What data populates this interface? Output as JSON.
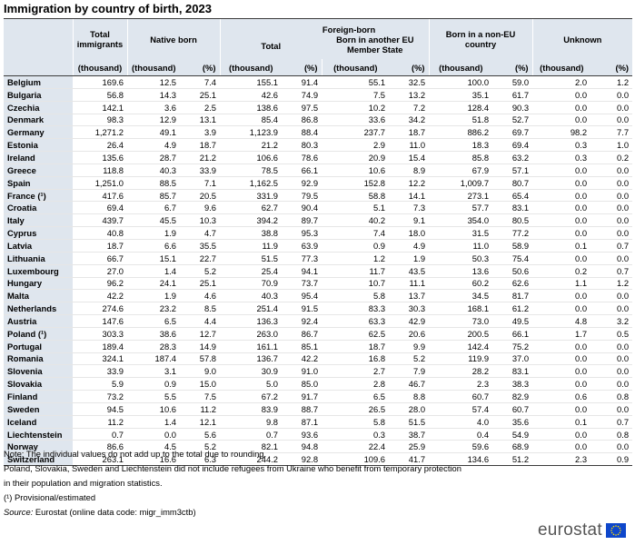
{
  "title": "Immigration by country of birth, 2023",
  "headers": {
    "total_immigrants": "Total immigrants",
    "native_born": "Native born",
    "foreign_born": "Foreign-born",
    "total": "Total",
    "other_eu": "Born in another EU Member State",
    "non_eu": "Born in a non-EU country",
    "unknown": "Unknown",
    "thousand": "(thousand)",
    "percent": "(%)"
  },
  "rows": [
    [
      "Belgium",
      "169.6",
      "12.5",
      "7.4",
      "155.1",
      "91.4",
      "55.1",
      "32.5",
      "100.0",
      "59.0",
      "2.0",
      "1.2"
    ],
    [
      "Bulgaria",
      "56.8",
      "14.3",
      "25.1",
      "42.6",
      "74.9",
      "7.5",
      "13.2",
      "35.1",
      "61.7",
      "0.0",
      "0.0"
    ],
    [
      "Czechia",
      "142.1",
      "3.6",
      "2.5",
      "138.6",
      "97.5",
      "10.2",
      "7.2",
      "128.4",
      "90.3",
      "0.0",
      "0.0"
    ],
    [
      "Denmark",
      "98.3",
      "12.9",
      "13.1",
      "85.4",
      "86.8",
      "33.6",
      "34.2",
      "51.8",
      "52.7",
      "0.0",
      "0.0"
    ],
    [
      "Germany",
      "1,271.2",
      "49.1",
      "3.9",
      "1,123.9",
      "88.4",
      "237.7",
      "18.7",
      "886.2",
      "69.7",
      "98.2",
      "7.7"
    ],
    [
      "Estonia",
      "26.4",
      "4.9",
      "18.7",
      "21.2",
      "80.3",
      "2.9",
      "11.0",
      "18.3",
      "69.4",
      "0.3",
      "1.0"
    ],
    [
      "Ireland",
      "135.6",
      "28.7",
      "21.2",
      "106.6",
      "78.6",
      "20.9",
      "15.4",
      "85.8",
      "63.2",
      "0.3",
      "0.2"
    ],
    [
      "Greece",
      "118.8",
      "40.3",
      "33.9",
      "78.5",
      "66.1",
      "10.6",
      "8.9",
      "67.9",
      "57.1",
      "0.0",
      "0.0"
    ],
    [
      "Spain",
      "1,251.0",
      "88.5",
      "7.1",
      "1,162.5",
      "92.9",
      "152.8",
      "12.2",
      "1,009.7",
      "80.7",
      "0.0",
      "0.0"
    ],
    [
      "France (¹)",
      "417.6",
      "85.7",
      "20.5",
      "331.9",
      "79.5",
      "58.8",
      "14.1",
      "273.1",
      "65.4",
      "0.0",
      "0.0"
    ],
    [
      "Croatia",
      "69.4",
      "6.7",
      "9.6",
      "62.7",
      "90.4",
      "5.1",
      "7.3",
      "57.7",
      "83.1",
      "0.0",
      "0.0"
    ],
    [
      "Italy",
      "439.7",
      "45.5",
      "10.3",
      "394.2",
      "89.7",
      "40.2",
      "9.1",
      "354.0",
      "80.5",
      "0.0",
      "0.0"
    ],
    [
      "Cyprus",
      "40.8",
      "1.9",
      "4.7",
      "38.8",
      "95.3",
      "7.4",
      "18.0",
      "31.5",
      "77.2",
      "0.0",
      "0.0"
    ],
    [
      "Latvia",
      "18.7",
      "6.6",
      "35.5",
      "11.9",
      "63.9",
      "0.9",
      "4.9",
      "11.0",
      "58.9",
      "0.1",
      "0.7"
    ],
    [
      "Lithuania",
      "66.7",
      "15.1",
      "22.7",
      "51.5",
      "77.3",
      "1.2",
      "1.9",
      "50.3",
      "75.4",
      "0.0",
      "0.0"
    ],
    [
      "Luxembourg",
      "27.0",
      "1.4",
      "5.2",
      "25.4",
      "94.1",
      "11.7",
      "43.5",
      "13.6",
      "50.6",
      "0.2",
      "0.7"
    ],
    [
      "Hungary",
      "96.2",
      "24.1",
      "25.1",
      "70.9",
      "73.7",
      "10.7",
      "11.1",
      "60.2",
      "62.6",
      "1.1",
      "1.2"
    ],
    [
      "Malta",
      "42.2",
      "1.9",
      "4.6",
      "40.3",
      "95.4",
      "5.8",
      "13.7",
      "34.5",
      "81.7",
      "0.0",
      "0.0"
    ],
    [
      "Netherlands",
      "274.6",
      "23.2",
      "8.5",
      "251.4",
      "91.5",
      "83.3",
      "30.3",
      "168.1",
      "61.2",
      "0.0",
      "0.0"
    ],
    [
      "Austria",
      "147.6",
      "6.5",
      "4.4",
      "136.3",
      "92.4",
      "63.3",
      "42.9",
      "73.0",
      "49.5",
      "4.8",
      "3.2"
    ],
    [
      "Poland (¹)",
      "303.3",
      "38.6",
      "12.7",
      "263.0",
      "86.7",
      "62.5",
      "20.6",
      "200.5",
      "66.1",
      "1.7",
      "0.5"
    ],
    [
      "Portugal",
      "189.4",
      "28.3",
      "14.9",
      "161.1",
      "85.1",
      "18.7",
      "9.9",
      "142.4",
      "75.2",
      "0.0",
      "0.0"
    ],
    [
      "Romania",
      "324.1",
      "187.4",
      "57.8",
      "136.7",
      "42.2",
      "16.8",
      "5.2",
      "119.9",
      "37.0",
      "0.0",
      "0.0"
    ],
    [
      "Slovenia",
      "33.9",
      "3.1",
      "9.0",
      "30.9",
      "91.0",
      "2.7",
      "7.9",
      "28.2",
      "83.1",
      "0.0",
      "0.0"
    ],
    [
      "Slovakia",
      "5.9",
      "0.9",
      "15.0",
      "5.0",
      "85.0",
      "2.8",
      "46.7",
      "2.3",
      "38.3",
      "0.0",
      "0.0"
    ],
    [
      "Finland",
      "73.2",
      "5.5",
      "7.5",
      "67.2",
      "91.7",
      "6.5",
      "8.8",
      "60.7",
      "82.9",
      "0.6",
      "0.8"
    ],
    [
      "Sweden",
      "94.5",
      "10.6",
      "11.2",
      "83.9",
      "88.7",
      "26.5",
      "28.0",
      "57.4",
      "60.7",
      "0.0",
      "0.0"
    ],
    [
      "Iceland",
      "11.2",
      "1.4",
      "12.1",
      "9.8",
      "87.1",
      "5.8",
      "51.5",
      "4.0",
      "35.6",
      "0.1",
      "0.7"
    ],
    [
      "Liechtenstein",
      "0.7",
      "0.0",
      "5.6",
      "0.7",
      "93.6",
      "0.3",
      "38.7",
      "0.4",
      "54.9",
      "0.0",
      "0.8"
    ],
    [
      "Norway",
      "86.6",
      "4.5",
      "5.2",
      "82.1",
      "94.8",
      "22.4",
      "25.9",
      "59.6",
      "68.9",
      "0.0",
      "0.0"
    ],
    [
      "Switzerland",
      "263.1",
      "16.6",
      "6.3",
      "244.2",
      "92.8",
      "109.6",
      "41.7",
      "134.6",
      "51.2",
      "2.3",
      "0.9"
    ]
  ],
  "notes": {
    "line1": "Note: The individual values do not add up to the total due to rounding.",
    "line2": "Poland, Slovakia, Sweden and Liechtenstein did not include refugees from Ukraine who benefit from temporary protection",
    "line3": "in their population and migration statistics.",
    "line4": "(¹) Provisional/estimated",
    "source_label": "Source:",
    "source_text": "Eurostat (online data code: migr_imm3ctb)"
  },
  "logo": {
    "text": "eurostat",
    "icon": "eu-flag-icon",
    "flag_color": "#0e47cb",
    "star_color": "#ffdd00"
  },
  "colors": {
    "header_bg": "#dfe6ee"
  }
}
